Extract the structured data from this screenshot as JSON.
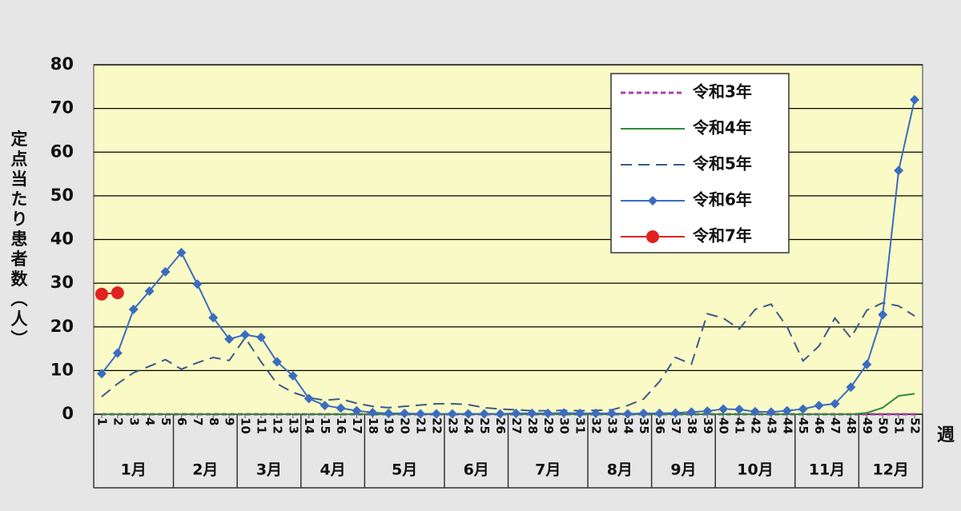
{
  "chart_data": {
    "type": "line",
    "ylabel": "定点当たり患者数（人）",
    "xlabel": "週",
    "x": [
      1,
      2,
      3,
      4,
      5,
      6,
      7,
      8,
      9,
      10,
      11,
      12,
      13,
      14,
      15,
      16,
      17,
      18,
      19,
      20,
      21,
      22,
      23,
      24,
      25,
      26,
      27,
      28,
      29,
      30,
      31,
      32,
      33,
      34,
      35,
      36,
      37,
      38,
      39,
      40,
      41,
      42,
      43,
      44,
      45,
      46,
      47,
      48,
      49,
      50,
      51,
      52
    ],
    "xlim": [
      0.5,
      52.5
    ],
    "xticks": [
      1,
      2,
      3,
      4,
      5,
      6,
      7,
      8,
      9,
      10,
      11,
      12,
      13,
      14,
      15,
      16,
      17,
      18,
      19,
      20,
      21,
      22,
      23,
      24,
      25,
      26,
      27,
      28,
      29,
      30,
      31,
      32,
      33,
      34,
      35,
      36,
      37,
      38,
      39,
      40,
      41,
      42,
      43,
      44,
      45,
      46,
      47,
      48,
      49,
      50,
      51,
      52
    ],
    "ylim": [
      0,
      80
    ],
    "yticks": [
      0,
      10,
      20,
      30,
      40,
      50,
      60,
      70,
      80
    ],
    "grid": true,
    "months": [
      "1月",
      "2月",
      "3月",
      "4月",
      "5月",
      "6月",
      "7月",
      "8月",
      "9月",
      "10月",
      "11月",
      "12月"
    ],
    "month_end_weeks": [
      5,
      9,
      13,
      17,
      22,
      26,
      31,
      35,
      39,
      44,
      48,
      52
    ],
    "series": [
      {
        "name": "令和3年",
        "color": "#b03cb0",
        "line": "dotted",
        "marker": "none",
        "values": [
          0,
          0,
          0,
          0,
          0,
          0,
          0,
          0,
          0,
          0,
          0,
          0,
          0,
          0,
          0,
          0,
          0,
          0,
          0,
          0,
          0,
          0,
          0,
          0,
          0,
          0,
          0,
          0,
          0,
          0,
          0,
          0,
          0,
          0,
          0,
          0,
          0,
          0,
          0,
          0,
          0,
          0,
          0,
          0,
          0,
          0,
          0,
          0,
          0,
          0,
          0,
          0
        ]
      },
      {
        "name": "令和4年",
        "color": "#2e8b3a",
        "line": "solid",
        "marker": "none",
        "values": [
          0,
          0,
          0,
          0,
          0,
          0,
          0,
          0,
          0,
          0,
          0,
          0,
          0,
          0,
          0,
          0,
          0,
          0,
          0,
          0,
          0,
          0,
          0,
          0,
          0,
          0,
          0,
          0,
          0,
          0,
          0,
          0,
          0,
          0,
          0,
          0,
          0,
          0,
          0,
          0,
          0,
          0,
          0,
          0,
          0,
          0,
          0,
          0,
          0.3,
          1.5,
          4.2,
          4.7
        ]
      },
      {
        "name": "令和5年",
        "color": "#3b5a8a",
        "line": "dashed",
        "marker": "none",
        "values": [
          4,
          7,
          9.5,
          11,
          12.5,
          10.3,
          11.8,
          13,
          12.3,
          17.5,
          12,
          7,
          5,
          3.8,
          3.2,
          3.5,
          2.5,
          1.8,
          1.5,
          1.8,
          2.1,
          2.4,
          2.4,
          2.2,
          1.5,
          1.2,
          1,
          0.8,
          0.8,
          0.9,
          0.8,
          0.9,
          1,
          2,
          3.5,
          7.5,
          13,
          11.5,
          23,
          22,
          19.5,
          24,
          25.2,
          20,
          12.2,
          15.6,
          22,
          17.5,
          23.8,
          25.5,
          24.8,
          22.5
        ]
      },
      {
        "name": "令和6年",
        "color": "#3a6cc0",
        "line": "solid",
        "marker": "diamond",
        "values": [
          9.3,
          14,
          24,
          28.2,
          32.6,
          37,
          29.8,
          22.1,
          17.2,
          18.2,
          17.6,
          12,
          8.8,
          3.6,
          2,
          1.4,
          0.8,
          0.4,
          0.2,
          0.2,
          0.1,
          0.1,
          0.1,
          0.1,
          0.1,
          0.1,
          0.2,
          0.2,
          0.2,
          0.3,
          0.2,
          0.2,
          0.2,
          0.1,
          0.2,
          0.2,
          0.3,
          0.5,
          0.7,
          1.2,
          1.1,
          0.6,
          0.5,
          0.8,
          1.2,
          2,
          2.4,
          6.2,
          11.4,
          22.8,
          55.8,
          72
        ]
      },
      {
        "name": "令和7年",
        "color": "#e02222",
        "line": "solid",
        "marker": "circle",
        "values": [
          27.5,
          27.8,
          null,
          null,
          null,
          null,
          null,
          null,
          null,
          null,
          null,
          null,
          null,
          null,
          null,
          null,
          null,
          null,
          null,
          null,
          null,
          null,
          null,
          null,
          null,
          null,
          null,
          null,
          null,
          null,
          null,
          null,
          null,
          null,
          null,
          null,
          null,
          null,
          null,
          null,
          null,
          null,
          null,
          null,
          null,
          null,
          null,
          null,
          null,
          null,
          null,
          null
        ]
      }
    ]
  }
}
